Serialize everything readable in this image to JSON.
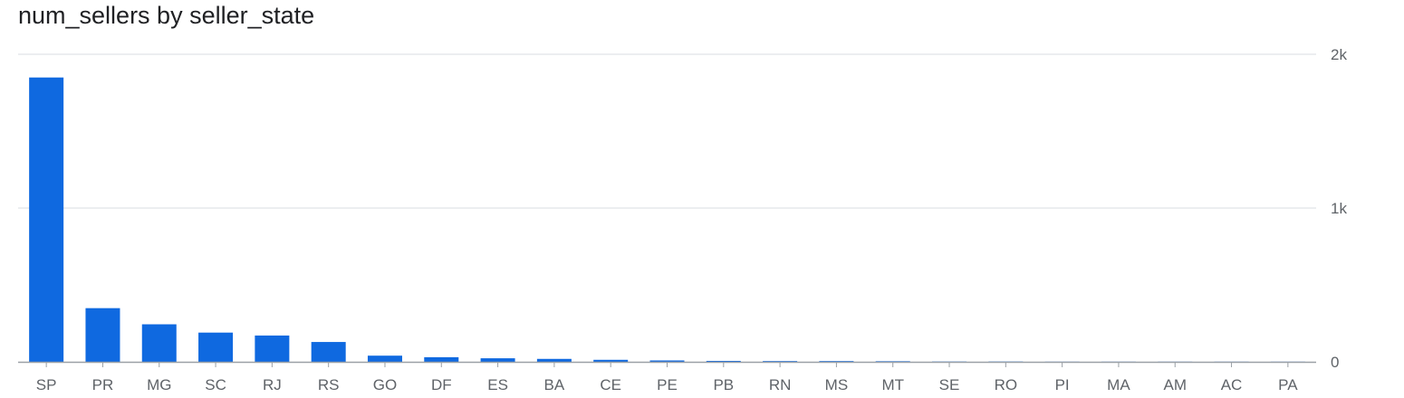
{
  "chart_data": {
    "type": "bar",
    "title": "num_sellers by seller_state",
    "xlabel": "",
    "ylabel": "",
    "categories": [
      "SP",
      "PR",
      "MG",
      "SC",
      "RJ",
      "RS",
      "GO",
      "DF",
      "ES",
      "BA",
      "CE",
      "PE",
      "PB",
      "RN",
      "MS",
      "MT",
      "SE",
      "RO",
      "PI",
      "MA",
      "AM",
      "AC",
      "PA"
    ],
    "values": [
      1849,
      349,
      244,
      190,
      171,
      129,
      40,
      30,
      23,
      19,
      13,
      9,
      6,
      5,
      5,
      4,
      2,
      2,
      1,
      1,
      1,
      1,
      1
    ],
    "ylim": [
      0,
      2000
    ],
    "y_ticks": [
      {
        "value": 0,
        "label": "0"
      },
      {
        "value": 1000,
        "label": "1k"
      },
      {
        "value": 2000,
        "label": "2k"
      }
    ],
    "grid": true,
    "legend": "none",
    "y_axis_side": "right",
    "colors": {
      "bar": "#0f69e0",
      "grid": "#dadce0",
      "axis": "#9aa0a6",
      "text": "#5f6368",
      "title": "#202124"
    }
  }
}
